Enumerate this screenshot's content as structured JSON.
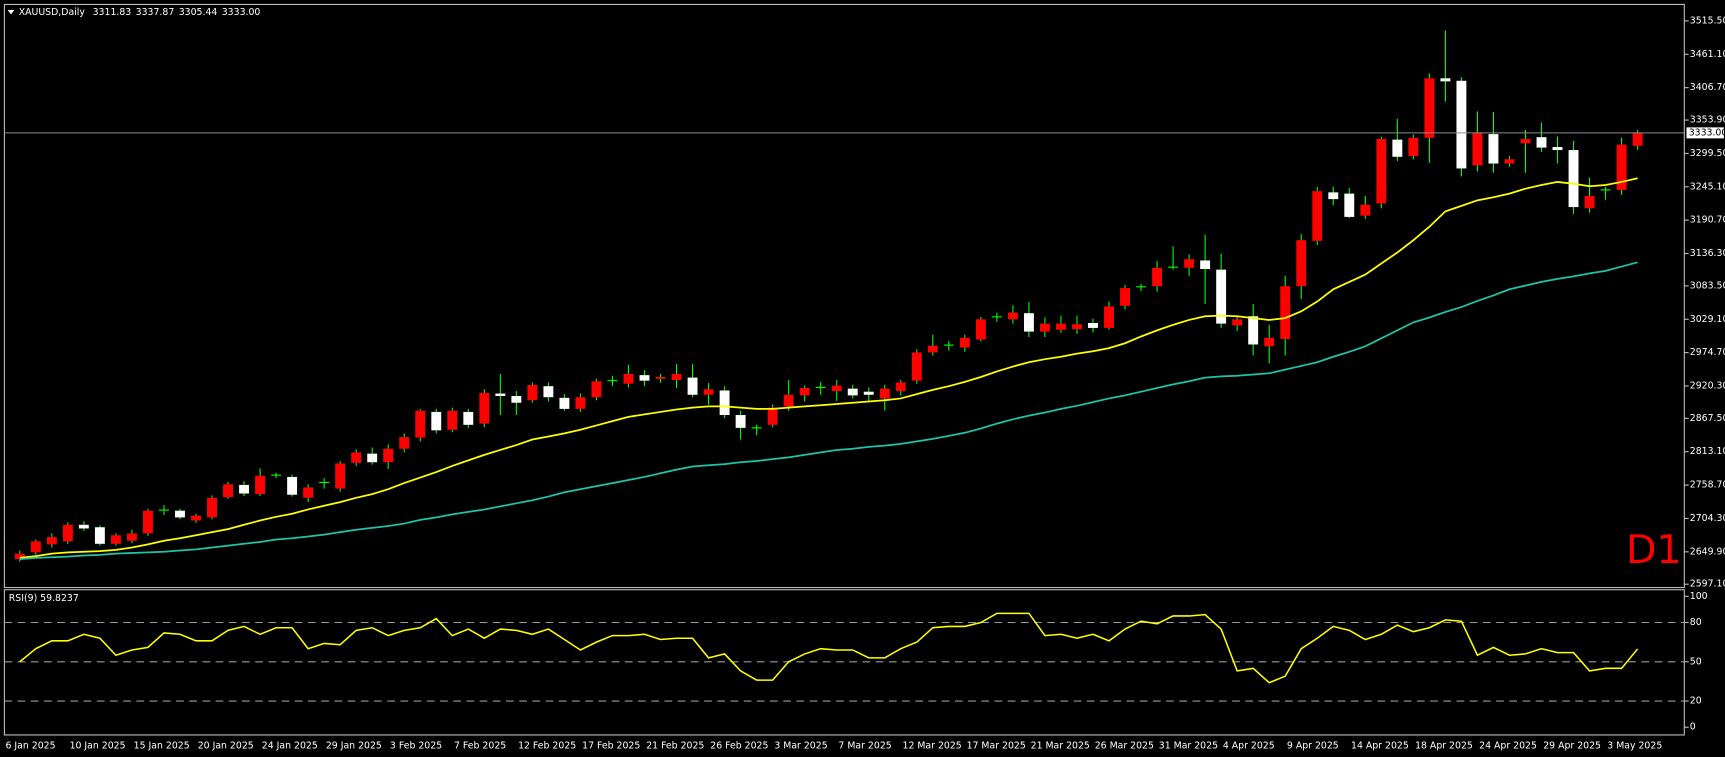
{
  "header": {
    "symbol": "XAUUSD,Daily",
    "ohlc": [
      "3311.83",
      "3337.87",
      "3305.44",
      "3333.00"
    ]
  },
  "timeframe_badge": "D1",
  "chart_data": [
    {
      "type": "candlestick",
      "categories": [
        "6 Jan 2025",
        null,
        null,
        null,
        "10 Jan 2025",
        null,
        null,
        null,
        "15 Jan 2025",
        null,
        null,
        null,
        "20 Jan 2025",
        null,
        null,
        null,
        "24 Jan 2025",
        null,
        null,
        null,
        "29 Jan 2025",
        null,
        null,
        null,
        "3 Feb 2025",
        null,
        null,
        null,
        "7 Feb 2025",
        null,
        null,
        null,
        "12 Feb 2025",
        null,
        null,
        null,
        "17 Feb 2025",
        null,
        null,
        null,
        "21 Feb 2025",
        null,
        null,
        null,
        "26 Feb 2025",
        null,
        null,
        null,
        "3 Mar 2025",
        null,
        null,
        null,
        "7 Mar 2025",
        null,
        null,
        null,
        "12 Mar 2025",
        null,
        null,
        null,
        "17 Mar 2025",
        null,
        null,
        null,
        "21 Mar 2025",
        null,
        null,
        null,
        "26 Mar 2025",
        null,
        null,
        null,
        "31 Mar 2025",
        null,
        null,
        null,
        "4 Apr 2025",
        null,
        null,
        null,
        "9 Apr 2025",
        null,
        null,
        null,
        "14 Apr 2025",
        null,
        null,
        null,
        "18 Apr 2025",
        null,
        null,
        null,
        "24 Apr 2025",
        null,
        null,
        null,
        "29 Apr 2025",
        null,
        null,
        null,
        "3 May 2025",
        null
      ],
      "open": [
        2638,
        2649,
        2662,
        2667,
        2694,
        2690,
        2663,
        2668,
        2680,
        2717,
        2717,
        2701,
        2706,
        2739,
        2759,
        2744,
        2775,
        2772,
        2738,
        2762,
        2753,
        2795,
        2810,
        2796,
        2818,
        2836,
        2878,
        2849,
        2878,
        2859,
        2908,
        2904,
        2897,
        2920,
        2901,
        2883,
        2902,
        2928,
        2924,
        2938,
        2932,
        2930,
        2934,
        2906,
        2913,
        2873,
        2853,
        2857,
        2887,
        2905,
        2919,
        2912,
        2916,
        2911,
        2900,
        2912,
        2929,
        2975,
        2986,
        2983,
        2996,
        3034,
        3029,
        3039,
        3009,
        3012,
        3013,
        3023,
        3015,
        3051,
        3080,
        3083,
        3114,
        3113,
        3125,
        3110,
        3019,
        3034,
        2985,
        2997,
        3083,
        3157,
        3236,
        3234,
        3198,
        3218,
        3322,
        3295,
        3325,
        3422,
        3418,
        3280,
        3331,
        3283,
        3316,
        3326,
        3310,
        3305,
        3210,
        3238,
        3240,
        3311.83
      ],
      "high": [
        2652,
        2670,
        2680,
        2698,
        2700,
        2693,
        2680,
        2686,
        2720,
        2726,
        2720,
        2712,
        2742,
        2764,
        2765,
        2786,
        2779,
        2776,
        2760,
        2770,
        2798,
        2817,
        2820,
        2825,
        2843,
        2883,
        2883,
        2885,
        2883,
        2915,
        2940,
        2912,
        2926,
        2926,
        2907,
        2908,
        2932,
        2937,
        2955,
        2946,
        2940,
        2956,
        2956,
        2925,
        2920,
        2880,
        2857,
        2890,
        2930,
        2921,
        2927,
        2930,
        2922,
        2918,
        2922,
        2930,
        2980,
        3004,
        2994,
        3004,
        3033,
        3040,
        3052,
        3057,
        3032,
        3035,
        3035,
        3030,
        3058,
        3085,
        3087,
        3124,
        3148,
        3135,
        3167,
        3136,
        3034,
        3054,
        3020,
        3100,
        3168,
        3245,
        3245,
        3243,
        3230,
        3327,
        3356,
        3330,
        3430,
        3500,
        3424,
        3368,
        3367,
        3295,
        3338,
        3350,
        3327,
        3320,
        3260,
        3245,
        3325,
        3337.87
      ],
      "low": [
        2634,
        2645,
        2657,
        2663,
        2684,
        2660,
        2660,
        2664,
        2676,
        2710,
        2703,
        2697,
        2703,
        2736,
        2741,
        2741,
        2770,
        2740,
        2731,
        2753,
        2748,
        2790,
        2792,
        2785,
        2812,
        2830,
        2843,
        2845,
        2852,
        2853,
        2873,
        2873,
        2893,
        2895,
        2880,
        2878,
        2897,
        2920,
        2918,
        2920,
        2926,
        2917,
        2902,
        2890,
        2868,
        2833,
        2840,
        2853,
        2880,
        2895,
        2906,
        2896,
        2900,
        2895,
        2880,
        2905,
        2924,
        2970,
        2978,
        2976,
        2993,
        3025,
        3022,
        3000,
        3000,
        3007,
        3005,
        3008,
        3012,
        3045,
        3075,
        3074,
        3110,
        3100,
        3054,
        3015,
        3010,
        2970,
        2957,
        2970,
        3062,
        3150,
        3215,
        3194,
        3193,
        3210,
        3287,
        3290,
        3284,
        3384,
        3262,
        3270,
        3268,
        3278,
        3268,
        3302,
        3283,
        3201,
        3203,
        3224,
        3232,
        3305.44
      ],
      "close": [
        2647,
        2667,
        2674,
        2694,
        2688,
        2663,
        2677,
        2680,
        2717,
        2718,
        2706,
        2709,
        2738,
        2760,
        2745,
        2774,
        2775,
        2743,
        2755,
        2763,
        2794,
        2812,
        2796,
        2818,
        2837,
        2880,
        2848,
        2880,
        2857,
        2909,
        2904,
        2893,
        2922,
        2902,
        2883,
        2902,
        2928,
        2929,
        2940,
        2929,
        2935,
        2940,
        2906,
        2915,
        2873,
        2852,
        2852,
        2885,
        2906,
        2917,
        2918,
        2921,
        2905,
        2906,
        2916,
        2926,
        2975,
        2986,
        2987,
        2999,
        3029,
        3033,
        3040,
        3009,
        3022,
        3022,
        3021,
        3015,
        3050,
        3080,
        3082,
        3113,
        3114,
        3127,
        3111,
        3022,
        3029,
        2988,
        2999,
        3083,
        3158,
        3238,
        3225,
        3196,
        3216,
        3323,
        3294,
        3325,
        3422,
        3417,
        3275,
        3333,
        3283,
        3290,
        3323,
        3309,
        3305,
        3212,
        3230,
        3240,
        3314,
        3333
      ],
      "bull_color": "#ff0000",
      "bear_color": "#ffffff",
      "wick_color": "#00ff00",
      "overlays": [
        {
          "color": "#ffff00",
          "values": [
            2640,
            2643,
            2647,
            2649,
            2650,
            2651,
            2653,
            2657,
            2662,
            2668,
            2672,
            2677,
            2682,
            2687,
            2694,
            2701,
            2707,
            2712,
            2719,
            2725,
            2731,
            2738,
            2744,
            2752,
            2762,
            2771,
            2780,
            2790,
            2799,
            2808,
            2816,
            2824,
            2833,
            2838,
            2843,
            2849,
            2856,
            2863,
            2870,
            2874,
            2878,
            2882,
            2885,
            2887,
            2887,
            2885,
            2883,
            2883,
            2885,
            2887,
            2889,
            2891,
            2893,
            2895,
            2897,
            2900,
            2907,
            2914,
            2920,
            2927,
            2935,
            2944,
            2952,
            2959,
            2964,
            2968,
            2973,
            2977,
            2982,
            2990,
            3001,
            3011,
            3020,
            3028,
            3034,
            3035,
            3034,
            3031,
            3028,
            3031,
            3042,
            3058,
            3078,
            3090,
            3102,
            3120,
            3138,
            3158,
            3180,
            3205,
            3214,
            3223,
            3228,
            3234,
            3242,
            3248,
            3253,
            3250,
            3246,
            3248,
            3253,
            3259
          ]
        },
        {
          "color": "#1fc4a8",
          "values": [
            2638,
            2640,
            2641,
            2642,
            2644,
            2645,
            2647,
            2648,
            2649,
            2650,
            2652,
            2654,
            2657,
            2660,
            2663,
            2666,
            2670,
            2672,
            2675,
            2678,
            2682,
            2686,
            2689,
            2692,
            2696,
            2702,
            2706,
            2711,
            2715,
            2719,
            2724,
            2729,
            2734,
            2740,
            2747,
            2752,
            2757,
            2762,
            2767,
            2772,
            2778,
            2784,
            2789,
            2791,
            2793,
            2796,
            2798,
            2801,
            2804,
            2808,
            2812,
            2816,
            2818,
            2821,
            2823,
            2826,
            2830,
            2834,
            2839,
            2844,
            2851,
            2859,
            2866,
            2872,
            2877,
            2883,
            2888,
            2894,
            2900,
            2905,
            2911,
            2917,
            2923,
            2928,
            2934,
            2936,
            2937,
            2939,
            2941,
            2947,
            2953,
            2959,
            2968,
            2976,
            2985,
            2998,
            3011,
            3024,
            3032,
            3041,
            3049,
            3059,
            3068,
            3078,
            3084,
            3090,
            3095,
            3099,
            3104,
            3108,
            3115,
            3122
          ]
        }
      ],
      "ylim": [
        2593.5,
        3540.6
      ],
      "yticks": [
        {
          "value": 3515.5,
          "label": "3515.50"
        },
        {
          "value": 3461.1,
          "label": "3461.10"
        },
        {
          "value": 3406.7,
          "label": "3406.70"
        },
        {
          "value": 3353.9,
          "label": "3353.90"
        },
        {
          "value": 3299.5,
          "label": "3299.50"
        },
        {
          "value": 3245.1,
          "label": "3245.10"
        },
        {
          "value": 3190.7,
          "label": "3190.70"
        },
        {
          "value": 3136.3,
          "label": "3136.30"
        },
        {
          "value": 3083.5,
          "label": "3083.50"
        },
        {
          "value": 3029.1,
          "label": "3029.10"
        },
        {
          "value": 2974.7,
          "label": "2974.70"
        },
        {
          "value": 2920.3,
          "label": "2920.30"
        },
        {
          "value": 2867.5,
          "label": "2867.50"
        },
        {
          "value": 2813.1,
          "label": "2813.10"
        },
        {
          "value": 2758.7,
          "label": "2758.70"
        },
        {
          "value": 2704.3,
          "label": "2704.30"
        },
        {
          "value": 2649.9,
          "label": "2649.90"
        },
        {
          "value": 2597.1,
          "label": "2597.10"
        }
      ],
      "grid": false,
      "price_line": {
        "value": 3333,
        "label": "3333.00"
      }
    },
    {
      "type": "line",
      "title": "RSI(9) 59.8237",
      "series": [
        {
          "color": "#ffff00",
          "values": [
            50,
            60,
            66,
            66,
            71,
            68,
            55,
            59,
            61,
            72,
            71,
            66,
            66,
            74,
            77,
            71,
            76,
            76,
            60,
            64,
            63,
            74,
            76,
            70,
            74,
            76,
            83,
            70,
            75,
            68,
            75,
            74,
            71,
            75,
            67,
            59,
            65,
            70,
            70,
            71,
            67,
            68,
            68,
            53,
            56,
            43,
            36,
            36,
            50,
            56,
            60,
            59,
            59,
            53,
            53,
            60,
            65,
            76,
            77,
            77,
            80,
            87,
            87,
            87,
            70,
            71,
            68,
            71,
            66,
            75,
            81,
            79,
            85,
            85,
            86,
            75,
            43,
            45,
            34,
            39,
            60,
            68,
            77,
            74,
            67,
            71,
            78,
            73,
            76,
            82,
            81,
            55,
            61,
            55,
            56,
            60,
            57,
            57,
            43,
            45,
            45,
            59.8
          ]
        }
      ],
      "ylim": [
        -5.9,
        104.2
      ],
      "yticks": [
        0,
        20,
        50,
        80,
        100
      ],
      "levels": [
        20,
        50,
        80
      ]
    }
  ]
}
